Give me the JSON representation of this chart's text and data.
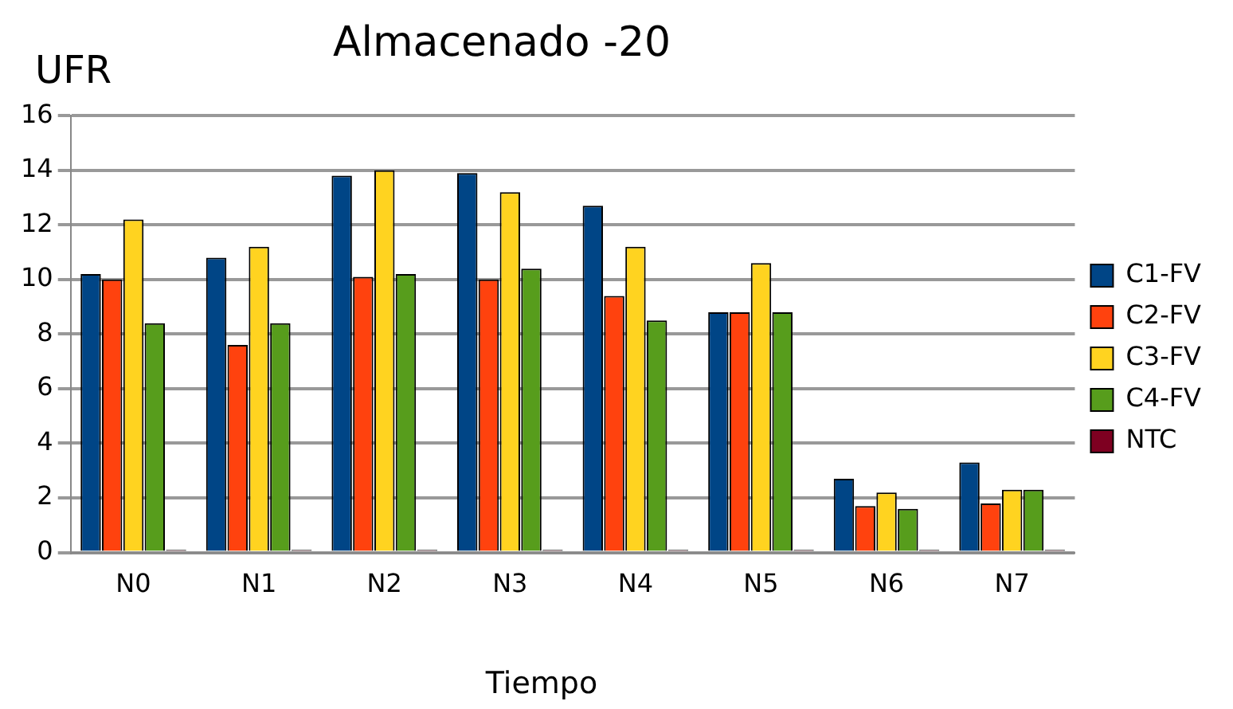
{
  "chart_data": {
    "type": "bar",
    "title": "Almacenado -20",
    "ylabel": "UFR",
    "xlabel": "Tiempo",
    "categories": [
      "N0",
      "N1",
      "N2",
      "N3",
      "N4",
      "N5",
      "N6",
      "N7"
    ],
    "series": [
      {
        "name": "C1-FV",
        "color": "#004586",
        "values": [
          10.2,
          10.8,
          13.8,
          13.9,
          12.7,
          8.8,
          2.7,
          3.3
        ]
      },
      {
        "name": "C2-FV",
        "color": "#ff420e",
        "values": [
          10.0,
          7.6,
          10.1,
          10.0,
          9.4,
          8.8,
          1.7,
          1.8
        ]
      },
      {
        "name": "C3-FV",
        "color": "#ffd320",
        "values": [
          12.2,
          11.2,
          14.0,
          13.2,
          11.2,
          10.6,
          2.2,
          2.3
        ]
      },
      {
        "name": "C4-FV",
        "color": "#579d1c",
        "values": [
          8.4,
          8.4,
          10.2,
          10.4,
          8.5,
          8.8,
          1.6,
          2.3
        ]
      },
      {
        "name": "NTC",
        "color": "#7e0021",
        "values": [
          0.1,
          0.1,
          0.1,
          0.1,
          0.1,
          0.1,
          0.1,
          0.1
        ]
      }
    ],
    "ylim": [
      0,
      16
    ],
    "yticks": [
      0,
      2,
      4,
      6,
      8,
      10,
      12,
      14,
      16
    ],
    "grid": "y",
    "legend": "right"
  }
}
